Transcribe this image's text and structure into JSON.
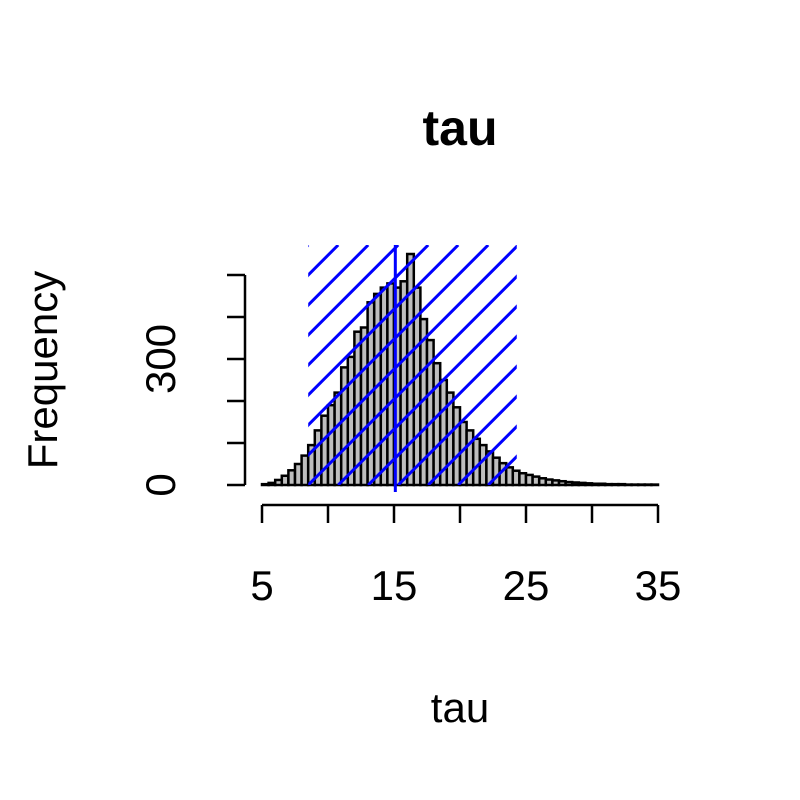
{
  "chart_data": {
    "type": "bar",
    "title": "tau",
    "xlabel": "tau",
    "ylabel": "Frequency",
    "xlim": [
      5,
      35
    ],
    "ylim": [
      0,
      500
    ],
    "x_ticks": [
      5,
      10,
      15,
      20,
      25,
      30,
      35
    ],
    "x_tick_labels": [
      "5",
      "",
      "15",
      "",
      "25",
      "",
      "35"
    ],
    "y_ticks": [
      0,
      100,
      200,
      300,
      400,
      500
    ],
    "y_tick_labels": [
      "0",
      "",
      "",
      "300",
      "",
      ""
    ],
    "bin_width": 0.5,
    "bins": [
      {
        "x0": 5.0,
        "count": 2
      },
      {
        "x0": 5.5,
        "count": 5
      },
      {
        "x0": 6.0,
        "count": 12
      },
      {
        "x0": 6.5,
        "count": 22
      },
      {
        "x0": 7.0,
        "count": 35
      },
      {
        "x0": 7.5,
        "count": 50
      },
      {
        "x0": 8.0,
        "count": 70
      },
      {
        "x0": 8.5,
        "count": 95
      },
      {
        "x0": 9.0,
        "count": 130
      },
      {
        "x0": 9.5,
        "count": 165
      },
      {
        "x0": 10.0,
        "count": 190
      },
      {
        "x0": 10.5,
        "count": 220
      },
      {
        "x0": 11.0,
        "count": 280
      },
      {
        "x0": 11.5,
        "count": 305
      },
      {
        "x0": 12.0,
        "count": 365
      },
      {
        "x0": 12.5,
        "count": 375
      },
      {
        "x0": 13.0,
        "count": 435
      },
      {
        "x0": 13.5,
        "count": 455
      },
      {
        "x0": 14.0,
        "count": 470
      },
      {
        "x0": 14.5,
        "count": 480
      },
      {
        "x0": 15.0,
        "count": 470
      },
      {
        "x0": 15.5,
        "count": 485
      },
      {
        "x0": 16.0,
        "count": 550
      },
      {
        "x0": 16.5,
        "count": 470
      },
      {
        "x0": 17.0,
        "count": 395
      },
      {
        "x0": 17.5,
        "count": 345
      },
      {
        "x0": 18.0,
        "count": 290
      },
      {
        "x0": 18.5,
        "count": 250
      },
      {
        "x0": 19.0,
        "count": 220
      },
      {
        "x0": 19.5,
        "count": 185
      },
      {
        "x0": 20.0,
        "count": 150
      },
      {
        "x0": 20.5,
        "count": 130
      },
      {
        "x0": 21.0,
        "count": 110
      },
      {
        "x0": 21.5,
        "count": 95
      },
      {
        "x0": 22.0,
        "count": 80
      },
      {
        "x0": 22.5,
        "count": 65
      },
      {
        "x0": 23.0,
        "count": 52
      },
      {
        "x0": 23.5,
        "count": 42
      },
      {
        "x0": 24.0,
        "count": 34
      },
      {
        "x0": 24.5,
        "count": 28
      },
      {
        "x0": 25.0,
        "count": 24
      },
      {
        "x0": 25.5,
        "count": 20
      },
      {
        "x0": 26.0,
        "count": 16
      },
      {
        "x0": 26.5,
        "count": 13
      },
      {
        "x0": 27.0,
        "count": 11
      },
      {
        "x0": 27.5,
        "count": 9
      },
      {
        "x0": 28.0,
        "count": 7
      },
      {
        "x0": 28.5,
        "count": 6
      },
      {
        "x0": 29.0,
        "count": 5
      },
      {
        "x0": 29.5,
        "count": 4
      },
      {
        "x0": 30.0,
        "count": 3
      },
      {
        "x0": 30.5,
        "count": 3
      },
      {
        "x0": 31.0,
        "count": 2
      },
      {
        "x0": 31.5,
        "count": 2
      },
      {
        "x0": 32.0,
        "count": 2
      },
      {
        "x0": 32.5,
        "count": 1
      },
      {
        "x0": 33.0,
        "count": 1
      },
      {
        "x0": 33.5,
        "count": 1
      },
      {
        "x0": 34.0,
        "count": 1
      },
      {
        "x0": 34.5,
        "count": 1
      }
    ],
    "shaded_interval": [
      8.5,
      24.3
    ],
    "vertical_line_x": 15.1,
    "colors": {
      "bars": "#bebebe",
      "bar_border": "#000000",
      "interval": "#0000ff"
    },
    "grid": false
  }
}
